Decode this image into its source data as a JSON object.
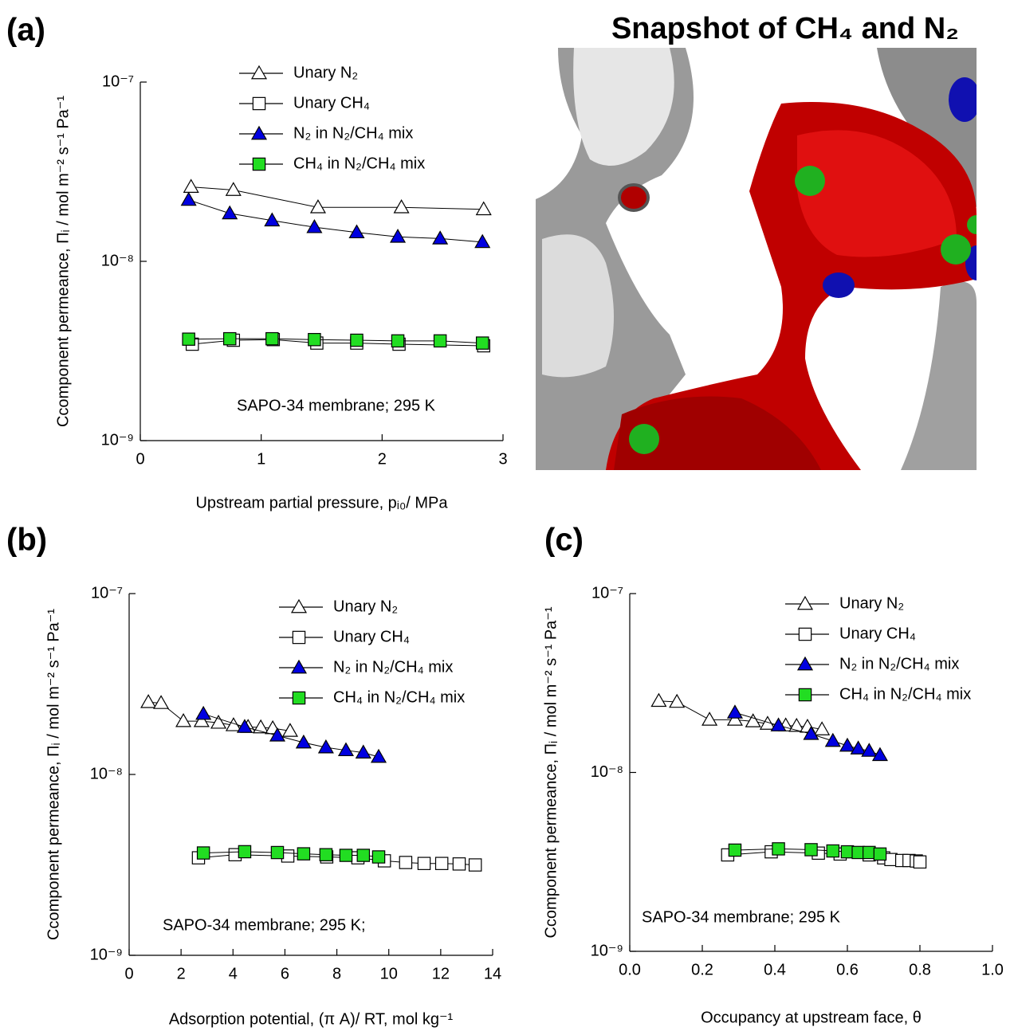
{
  "snapshot_title": "Snapshot of CH₄ and N₂",
  "chart_data": [
    {
      "type": "line",
      "panel_label": "(a)",
      "log_y": true,
      "x_label": "Upstream partial pressure, pᵢ₀/ MPa",
      "y_label": "Ccomponent permeance, Πᵢ / mol m⁻² s⁻¹ Pa⁻¹",
      "annotation": "SAPO-34 membrane; 295 K",
      "xlim": [
        0,
        3
      ],
      "ylim": [
        1e-09,
        1e-07
      ],
      "xticks": [
        0,
        1,
        2,
        3
      ],
      "yticks": [
        {
          "value": 1e-09,
          "label": "10⁻⁹"
        },
        {
          "value": 1e-08,
          "label": "10⁻⁸"
        },
        {
          "value": 1e-07,
          "label": "10⁻⁷"
        }
      ],
      "series": [
        {
          "name": "Unary N₂",
          "color": "#ffffff",
          "marker": "triangle",
          "x": [
            0.42,
            0.77,
            1.47,
            2.16,
            2.84
          ],
          "values": [
            2.6e-08,
            2.5e-08,
            2e-08,
            2e-08,
            1.95e-08
          ]
        },
        {
          "name": "Unary CH₄",
          "color": "#ffffff",
          "marker": "square",
          "x": [
            0.43,
            0.77,
            1.1,
            1.46,
            1.79,
            2.14,
            2.84
          ],
          "values": [
            3.45e-09,
            3.63e-09,
            3.66e-09,
            3.5e-09,
            3.5e-09,
            3.45e-09,
            3.38e-09
          ]
        },
        {
          "name": "N₂ in N₂/CH₄ mix",
          "color": "#0000e0",
          "marker": "triangle",
          "x": [
            0.4,
            0.74,
            1.09,
            1.44,
            1.79,
            2.13,
            2.48,
            2.83
          ],
          "values": [
            2.2e-08,
            1.85e-08,
            1.69e-08,
            1.55e-08,
            1.45e-08,
            1.37e-08,
            1.34e-08,
            1.28e-08
          ]
        },
        {
          "name": "CH₄ in N₂/CH₄ mix",
          "color": "#22dd22",
          "marker": "square",
          "x": [
            0.4,
            0.74,
            1.09,
            1.44,
            1.79,
            2.13,
            2.48,
            2.83
          ],
          "values": [
            3.68e-09,
            3.7e-09,
            3.7e-09,
            3.66e-09,
            3.63e-09,
            3.6e-09,
            3.6e-09,
            3.5e-09
          ]
        }
      ]
    },
    {
      "type": "line",
      "panel_label": "(b)",
      "log_y": true,
      "x_label": "Adsorption potential, (π A)/ RT,  mol kg⁻¹",
      "y_label": "Ccomponent permeance, Πᵢ / mol m⁻² s⁻¹ Pa⁻¹",
      "annotation": "SAPO-34 membrane; 295 K;",
      "xlim": [
        0,
        14
      ],
      "ylim": [
        1e-09,
        1e-07
      ],
      "xticks": [
        0,
        2,
        4,
        6,
        8,
        10,
        12,
        14
      ],
      "yticks": [
        {
          "value": 1e-09,
          "label": "10⁻⁹"
        },
        {
          "value": 1e-08,
          "label": "10⁻⁸"
        },
        {
          "value": 1e-07,
          "label": "10⁻⁷"
        }
      ],
      "series": [
        {
          "name": "Unary N₂",
          "color": "#ffffff",
          "marker": "triangle",
          "x": [
            0.74,
            1.23,
            2.09,
            2.79,
            3.44,
            4.02,
            4.58,
            5.07,
            5.53,
            6.2
          ],
          "values": [
            2.51e-08,
            2.48e-08,
            1.97e-08,
            1.97e-08,
            1.93e-08,
            1.87e-08,
            1.83e-08,
            1.82e-08,
            1.8e-08,
            1.74e-08
          ]
        },
        {
          "name": "Unary CH₄",
          "color": "#ffffff",
          "marker": "square",
          "x": [
            2.67,
            4.08,
            6.11,
            7.61,
            8.81,
            9.83,
            10.65,
            11.36,
            12.04,
            12.71,
            13.33
          ],
          "values": [
            3.46e-09,
            3.6e-09,
            3.54e-09,
            3.5e-09,
            3.46e-09,
            3.33e-09,
            3.26e-09,
            3.22e-09,
            3.22e-09,
            3.2e-09,
            3.16e-09
          ]
        },
        {
          "name": "N₂ in N₂/CH₄ mix",
          "color": "#0000e0",
          "marker": "triangle",
          "x": [
            2.86,
            4.45,
            5.71,
            6.72,
            7.58,
            8.35,
            9.02,
            9.61
          ],
          "values": [
            2.16e-08,
            1.83e-08,
            1.64e-08,
            1.5e-08,
            1.41e-08,
            1.36e-08,
            1.32e-08,
            1.25e-08
          ]
        },
        {
          "name": "CH₄ in N₂/CH₄ mix",
          "color": "#22dd22",
          "marker": "square",
          "x": [
            2.86,
            4.45,
            5.71,
            6.72,
            7.58,
            8.35,
            9.02,
            9.61
          ],
          "values": [
            3.68e-09,
            3.74e-09,
            3.7e-09,
            3.64e-09,
            3.6e-09,
            3.57e-09,
            3.57e-09,
            3.5e-09
          ]
        }
      ]
    },
    {
      "type": "line",
      "panel_label": "(c)",
      "log_y": true,
      "x_label": "Occupancy at upstream face, θ",
      "y_label": "Ccomponent permeance, Πᵢ / mol m⁻² s⁻¹ Pa⁻¹",
      "annotation": "SAPO-34 membrane; 295 K",
      "xlim": [
        0,
        1
      ],
      "ylim": [
        1e-09,
        1e-07
      ],
      "xticks": [
        {
          "value": 0,
          "label": "0.0"
        },
        0.2,
        0.4,
        0.6,
        0.8,
        {
          "value": 1,
          "label": "1.0"
        }
      ],
      "yticks": [
        {
          "value": 1e-09,
          "label": "10⁻⁹"
        },
        {
          "value": 1e-08,
          "label": "10⁻⁸"
        },
        {
          "value": 1e-07,
          "label": "10⁻⁷"
        }
      ],
      "series": [
        {
          "name": "Unary N₂",
          "color": "#ffffff",
          "marker": "triangle",
          "x": [
            0.08,
            0.13,
            0.22,
            0.29,
            0.34,
            0.38,
            0.43,
            0.46,
            0.49,
            0.53
          ],
          "values": [
            2.51e-08,
            2.48e-08,
            1.97e-08,
            1.97e-08,
            1.93e-08,
            1.87e-08,
            1.83e-08,
            1.82e-08,
            1.8e-08,
            1.74e-08
          ]
        },
        {
          "name": "Unary CH₄",
          "color": "#ffffff",
          "marker": "square",
          "x": [
            0.27,
            0.39,
            0.52,
            0.58,
            0.66,
            0.7,
            0.72,
            0.75,
            0.77,
            0.79,
            0.8
          ],
          "values": [
            3.46e-09,
            3.6e-09,
            3.54e-09,
            3.5e-09,
            3.46e-09,
            3.33e-09,
            3.26e-09,
            3.22e-09,
            3.22e-09,
            3.2e-09,
            3.16e-09
          ]
        },
        {
          "name": "N₂ in N₂/CH₄ mix",
          "color": "#0000e0",
          "marker": "triangle",
          "x": [
            0.29,
            0.41,
            0.5,
            0.56,
            0.6,
            0.63,
            0.66,
            0.69
          ],
          "values": [
            2.16e-08,
            1.83e-08,
            1.64e-08,
            1.5e-08,
            1.41e-08,
            1.36e-08,
            1.32e-08,
            1.25e-08
          ]
        },
        {
          "name": "CH₄ in N₂/CH₄ mix",
          "color": "#22dd22",
          "marker": "square",
          "x": [
            0.29,
            0.41,
            0.5,
            0.56,
            0.6,
            0.63,
            0.66,
            0.69
          ],
          "values": [
            3.68e-09,
            3.74e-09,
            3.7e-09,
            3.64e-09,
            3.6e-09,
            3.57e-09,
            3.57e-09,
            3.5e-09
          ]
        }
      ]
    }
  ]
}
